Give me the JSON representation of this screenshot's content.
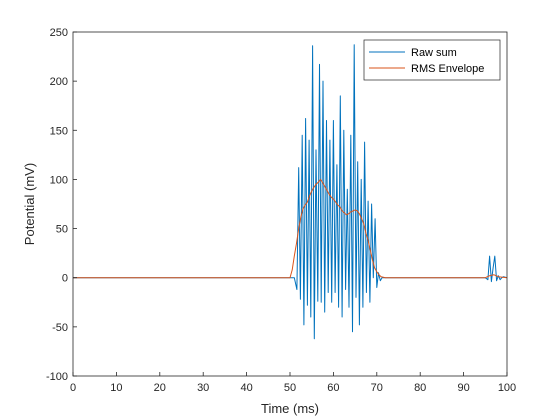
{
  "chart_data": {
    "type": "line",
    "title": "",
    "xlabel": "Time (ms)",
    "ylabel": "Potential (mV)",
    "xlim": [
      0,
      100
    ],
    "ylim": [
      -100,
      250
    ],
    "xticks": [
      0,
      10,
      20,
      30,
      40,
      50,
      60,
      70,
      80,
      90,
      100
    ],
    "yticks": [
      -100,
      -50,
      0,
      50,
      100,
      150,
      200,
      250
    ],
    "grid": false,
    "legend_position": "top-right",
    "series": [
      {
        "name": "Raw sum",
        "color": "#0072BD",
        "x": [
          0,
          50,
          51,
          51.6,
          52.0,
          52.4,
          52.8,
          53.2,
          53.6,
          54.0,
          54.4,
          54.8,
          55.2,
          55.6,
          56.0,
          56.4,
          56.8,
          57.2,
          57.6,
          58.0,
          58.4,
          58.8,
          59.2,
          59.6,
          60.0,
          60.4,
          60.8,
          61.2,
          61.6,
          62.0,
          62.4,
          62.8,
          63.2,
          63.6,
          64.0,
          64.4,
          64.8,
          65.2,
          65.6,
          66.0,
          66.4,
          66.8,
          67.2,
          67.6,
          68.0,
          68.4,
          68.8,
          69.2,
          69.6,
          70.0,
          70.4,
          70.8,
          71.2,
          72,
          95,
          95.6,
          96.0,
          96.4,
          96.8,
          97.2,
          97.6,
          98.0,
          98.4,
          98.8,
          99.2,
          100
        ],
        "y": [
          0,
          0,
          0,
          -12,
          112,
          -22,
          145,
          -48,
          162,
          -28,
          140,
          -40,
          236,
          -62,
          130,
          -24,
          217,
          -25,
          200,
          -35,
          160,
          -15,
          140,
          -25,
          160,
          -15,
          115,
          -30,
          185,
          -40,
          150,
          -12,
          90,
          -30,
          145,
          -55,
          237,
          -20,
          118,
          -48,
          100,
          -30,
          138,
          -15,
          78,
          -25,
          75,
          0,
          60,
          -10,
          5,
          -3,
          0,
          0,
          0,
          -2,
          22,
          -4,
          10,
          22,
          -3,
          2,
          -2,
          0,
          1,
          0
        ]
      },
      {
        "name": "RMS Envelope",
        "color": "#D95319",
        "x": [
          0,
          50,
          50.5,
          51,
          51.5,
          52,
          52.5,
          53,
          53.5,
          54,
          54.5,
          55,
          55.5,
          56,
          56.5,
          57,
          57.5,
          58,
          58.5,
          59,
          59.5,
          60,
          60.5,
          61,
          61.5,
          62,
          62.5,
          63,
          63.5,
          64,
          64.5,
          65,
          65.5,
          66,
          66.5,
          67,
          67.5,
          68,
          68.5,
          69,
          69.5,
          70,
          70.5,
          71,
          72,
          95,
          96,
          97,
          98,
          100
        ],
        "y": [
          0,
          0,
          8,
          22,
          35,
          50,
          62,
          70,
          74,
          77,
          83,
          88,
          92,
          95,
          97,
          100,
          97,
          93,
          89,
          85,
          82,
          80,
          77,
          74,
          72,
          68,
          66,
          64,
          65,
          67,
          68,
          69,
          68,
          65,
          60,
          55,
          45,
          38,
          28,
          18,
          10,
          6,
          3,
          1,
          0,
          0,
          2,
          3,
          1,
          0
        ]
      }
    ]
  }
}
